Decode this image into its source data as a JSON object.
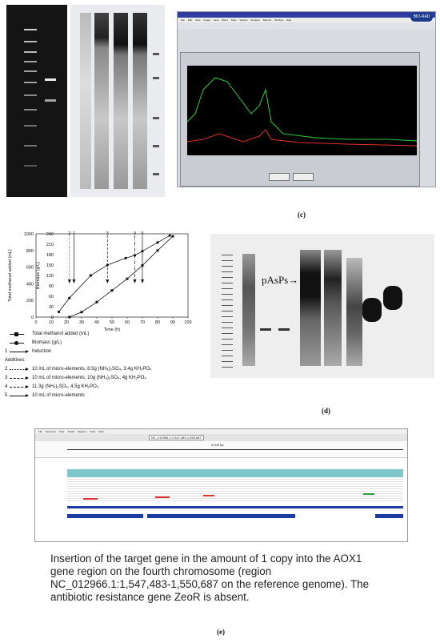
{
  "labels": {
    "c": "(c)",
    "d": "(d)",
    "e": "(e)"
  },
  "software": {
    "logo": "BIO-RAD",
    "menu": [
      "File",
      "Edit",
      "View",
      "Image",
      "Lane",
      "Band",
      "Tools",
      "Volume",
      "Analysis",
      "Reports",
      "Window",
      "Help"
    ]
  },
  "gel_d": {
    "band_label": "pAsPs→"
  },
  "igv": {
    "menu": [
      "File",
      "Genomes",
      "View",
      "Tracks",
      "Regions",
      "Tools",
      "Help"
    ],
    "locus": "NC_012966.1:1,547,483-1,550,687",
    "span": "3,205 bp"
  },
  "description": "Insertion of the target gene in the amount of 1 copy into the AOX1 gene region on the fourth chromosome (region NC_012966.1:1,547,483-1,550,687 on the reference genome). The antibiotic resistance gene ZeoR is absent.",
  "chart_data": {
    "type": "line",
    "xlabel": "Time (h)",
    "ylabel_left": "Total methanol added (mL)",
    "ylabel_right": "Biomass (g/L)",
    "xlim": [
      0,
      100
    ],
    "ylim_left": [
      0,
      1000
    ],
    "ylim_right": [
      0,
      240
    ],
    "x_ticks": [
      "0",
      "10",
      "20",
      "30",
      "40",
      "50",
      "60",
      "70",
      "80",
      "90",
      "100"
    ],
    "y_left_ticks": [
      "0",
      "200",
      "400",
      "600",
      "800",
      "1000"
    ],
    "y_right_ticks": [
      "0",
      "30",
      "60",
      "90",
      "120",
      "150",
      "180",
      "210",
      "240"
    ],
    "series": [
      {
        "name": "Total methanol added (mL)",
        "marker": "square",
        "axis": "left",
        "x": [
          22,
          30,
          40,
          50,
          60,
          70,
          80,
          90
        ],
        "y": [
          0,
          60,
          180,
          320,
          460,
          620,
          800,
          970
        ]
      },
      {
        "name": "Biomass (g/L)",
        "marker": "circle",
        "axis": "right",
        "x": [
          15,
          22,
          36,
          47,
          59,
          65,
          70,
          80,
          88
        ],
        "y": [
          15,
          55,
          120,
          150,
          170,
          178,
          190,
          215,
          235
        ]
      }
    ],
    "events": [
      {
        "x": 22,
        "label": "2",
        "style": "dotted"
      },
      {
        "x": 25,
        "label": "1",
        "style": "solid"
      },
      {
        "x": 47,
        "label": "3",
        "style": "dashed"
      },
      {
        "x": 65,
        "label": "4",
        "style": "dashdot"
      },
      {
        "x": 70,
        "label": "5",
        "style": "solid"
      }
    ],
    "legend": [
      {
        "key": "",
        "marker": "square",
        "text": "Total methanol added (mL)"
      },
      {
        "key": "",
        "marker": "circle",
        "text": "Biomass (g/L)"
      },
      {
        "key": "1",
        "marker": "arrow",
        "text": "Induction"
      },
      {
        "key": "",
        "marker": "",
        "text": "Additives:"
      },
      {
        "key": "2",
        "marker": "dotted",
        "text": "10 mL of micro-elements, 8.5g (NH₄)₂SO₄, 3.4g KH₂PO₄"
      },
      {
        "key": "3",
        "marker": "dashed",
        "text": "10 mL of micro-elements, 10g (NH₄)₂SO₄, 4g KH₂PO₄"
      },
      {
        "key": "4",
        "marker": "dashdot",
        "text": "11.3g (NH₄)₂SO₄, 4.5g KH₂PO₄"
      },
      {
        "key": "5",
        "marker": "arrow",
        "text": "10 mL of micro-elements"
      }
    ]
  }
}
